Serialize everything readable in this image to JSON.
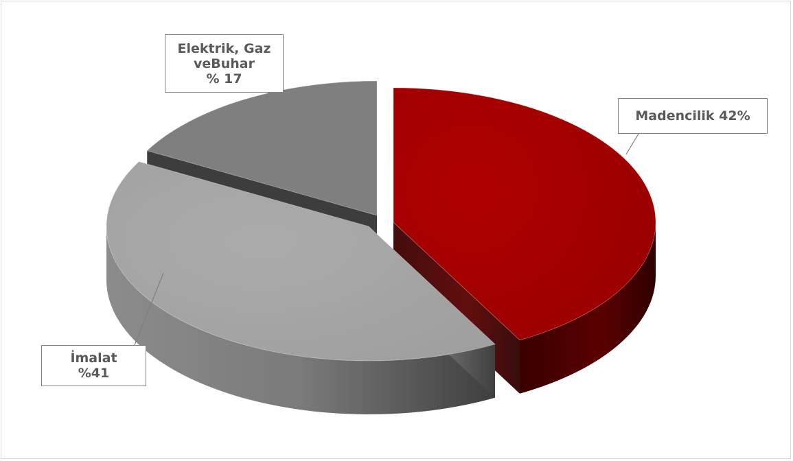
{
  "chart_data": {
    "type": "pie",
    "title": "",
    "slices": [
      {
        "name": "Madencilik",
        "value": 42,
        "color": "#a30000",
        "side_color": "#4a0000",
        "label_lines": [
          "Madencilik  42%"
        ]
      },
      {
        "name": "İmalat",
        "value": 41,
        "color": "#a6a6a6",
        "side_color": "#6b6b6b",
        "label_lines": [
          "İmalat",
          "%41"
        ]
      },
      {
        "name": "Elektrik, Gaz veBuhar",
        "value": 17,
        "color": "#808080",
        "side_color": "#333333",
        "label_lines": [
          "Elektrik, Gaz",
          "veBuhar",
          "% 17"
        ]
      }
    ],
    "style": "3d-exploded",
    "legend": "none"
  }
}
